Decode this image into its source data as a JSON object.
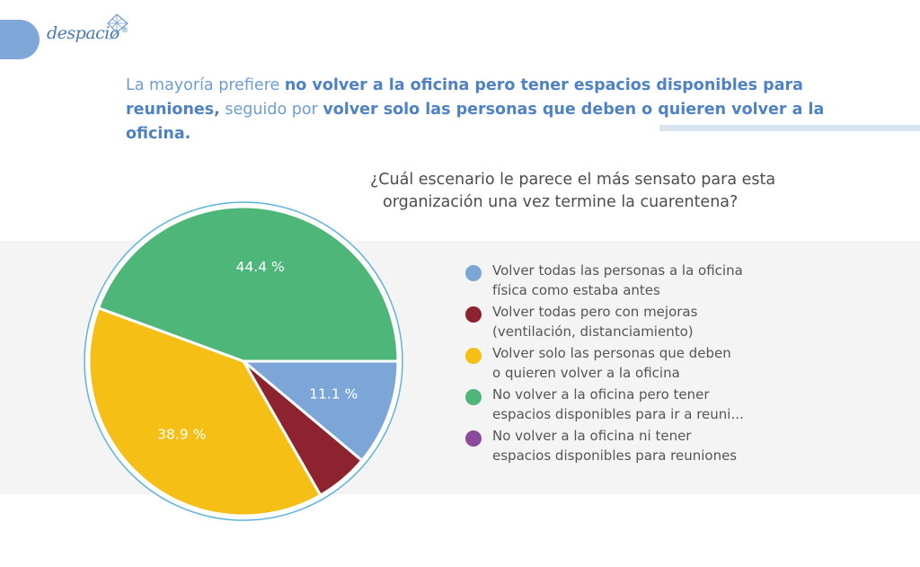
{
  "logo": {
    "name": "despacio",
    "registered": "®"
  },
  "headline": {
    "part1": "La mayoría prefiere ",
    "bold1": "no volver a la oficina pero tener espacios disponibles para reuniones,",
    "part2": " seguido por ",
    "bold2": "volver solo las personas que deben o quieren volver a la oficina."
  },
  "chart_data": {
    "type": "pie",
    "title_line1": "¿Cuál escenario le parece el más sensato para esta",
    "title_line2": "organización una vez termine la cuarentena?",
    "slices": [
      {
        "label_line1": "Volver todas las personas a la oficina",
        "label_line2": "física como estaba antes",
        "value": 11.1,
        "display": "11.1 %",
        "color": "#7da6d8"
      },
      {
        "label_line1": "Volver todas pero con mejoras",
        "label_line2": "(ventilación, distanciamiento)",
        "value": 5.6,
        "display": "",
        "color": "#8e2330"
      },
      {
        "label_line1": "Volver solo las personas que deben",
        "label_line2": "o quieren volver a la oficina",
        "value": 38.9,
        "display": "38.9 %",
        "color": "#f5bf16"
      },
      {
        "label_line1": "No volver a la oficina pero tener",
        "label_line2": "espacios disponibles para ir a reuni...",
        "value": 44.4,
        "display": "44.4 %",
        "color": "#4db678"
      },
      {
        "label_line1": "No volver a la oficina ni tener",
        "label_line2": "espacios disponibles para reuniones",
        "value": 0,
        "display": "",
        "color": "#8c4a9c"
      }
    ],
    "legend_position": "right"
  }
}
